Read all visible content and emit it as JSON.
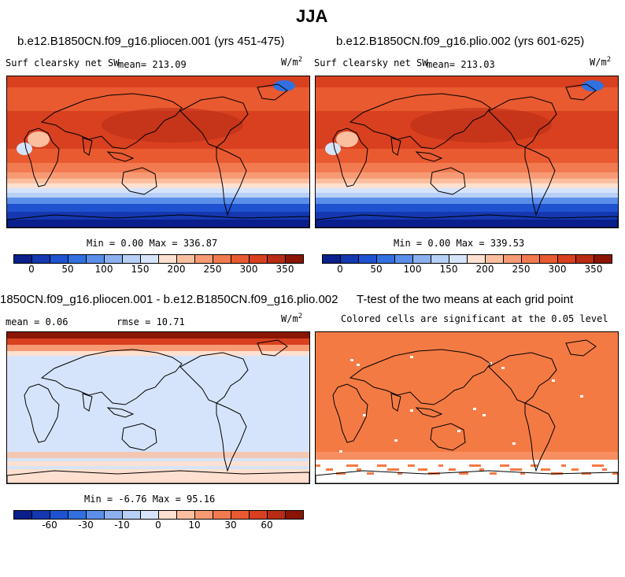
{
  "title": "JJA",
  "panels": [
    {
      "id": "a",
      "case_title": "b.e12.B1850CN.f09_g16.pliocen.001 (yrs 451-475)",
      "variable": "Surf clearsky net SW",
      "mean_label": "mean= 213.09",
      "units_base": "W/m",
      "units_exp": "2",
      "minmax": "Min =   0.00 Max = 336.87"
    },
    {
      "id": "b",
      "case_title": "b.e12.B1850CN.f09_g16.plio.002 (yrs 601-625)",
      "variable": "Surf clearsky net SW",
      "mean_label": "mean= 213.03",
      "units_base": "W/m",
      "units_exp": "2",
      "minmax": "Min =   0.00 Max = 339.53"
    },
    {
      "id": "c",
      "case_title": "1850CN.f09_g16.pliocen.001 - b.e12.B1850CN.f09_g16.plio.002",
      "mean_label": "mean =   0.06",
      "rmse_label": "rmse =  10.71",
      "units_base": "W/m",
      "units_exp": "2",
      "minmax": "Min =  -6.76 Max =  95.16"
    },
    {
      "id": "d",
      "case_title": "T-test of the two means at each grid point",
      "subtitle": "Colored cells are significant at the 0.05 level"
    }
  ],
  "chart_data": [
    {
      "type": "heatmap",
      "title": "b.e12.B1850CN.f09_g16.pliocen.001 (yrs 451-475)",
      "variable": "Surf clearsky net SW",
      "units": "W/m2",
      "mean": 213.09,
      "min": 0.0,
      "max": 336.87,
      "colorbar_ticks": [
        "0",
        "50",
        "100",
        "150",
        "200",
        "250",
        "300",
        "350"
      ],
      "colorbar_range": [
        -25,
        375
      ],
      "colorbar_levels": 16
    },
    {
      "type": "heatmap",
      "title": "b.e12.B1850CN.f09_g16.plio.002 (yrs 601-625)",
      "variable": "Surf clearsky net SW",
      "units": "W/m2",
      "mean": 213.03,
      "min": 0.0,
      "max": 339.53,
      "colorbar_ticks": [
        "0",
        "50",
        "100",
        "150",
        "200",
        "250",
        "300",
        "350"
      ],
      "colorbar_range": [
        -25,
        375
      ],
      "colorbar_levels": 16
    },
    {
      "type": "heatmap",
      "title": "1850CN.f09_g16.pliocen.001 - b.e12.B1850CN.f09_g16.plio.002",
      "units": "W/m2",
      "mean": 0.06,
      "rmse": 10.71,
      "min": -6.76,
      "max": 95.16,
      "colorbar_ticks": [
        "-60",
        "-30",
        "-10",
        "0",
        "10",
        "30",
        "60"
      ],
      "colorbar_levels": 16
    },
    {
      "type": "heatmap",
      "title": "T-test of the two means at each grid point",
      "subtitle": "Colored cells are significant at the 0.05 level"
    }
  ],
  "colors": {
    "palette": [
      "#0a1e8c",
      "#1538b0",
      "#1f52d0",
      "#3270e0",
      "#5b8ee9",
      "#8db0f0",
      "#b8cff6",
      "#d6e4fb",
      "#fde0d0",
      "#fbbfa0",
      "#f79a74",
      "#f27a50",
      "#e95a30",
      "#d8401f",
      "#b82b15",
      "#8a1505"
    ],
    "ttest_fill": "#f47a44"
  }
}
